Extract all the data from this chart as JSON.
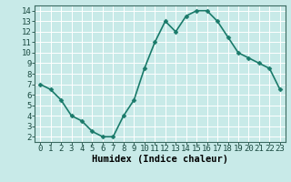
{
  "x": [
    0,
    1,
    2,
    3,
    4,
    5,
    6,
    7,
    8,
    9,
    10,
    11,
    12,
    13,
    14,
    15,
    16,
    17,
    18,
    19,
    20,
    21,
    22,
    23
  ],
  "y": [
    7.0,
    6.5,
    5.5,
    4.0,
    3.5,
    2.5,
    2.0,
    2.0,
    4.0,
    5.5,
    8.5,
    11.0,
    13.0,
    12.0,
    13.5,
    14.0,
    14.0,
    13.0,
    11.5,
    10.0,
    9.5,
    9.0,
    8.5,
    6.5
  ],
  "xlabel": "Humidex (Indice chaleur)",
  "line_color": "#1a7a6a",
  "marker_color": "#1a7a6a",
  "bg_color": "#c8eae8",
  "grid_color": "#ffffff",
  "xlim": [
    -0.5,
    23.5
  ],
  "ylim": [
    1.5,
    14.5
  ],
  "xticks": [
    0,
    1,
    2,
    3,
    4,
    5,
    6,
    7,
    8,
    9,
    10,
    11,
    12,
    13,
    14,
    15,
    16,
    17,
    18,
    19,
    20,
    21,
    22,
    23
  ],
  "yticks": [
    2,
    3,
    4,
    5,
    6,
    7,
    8,
    9,
    10,
    11,
    12,
    13,
    14
  ],
  "xlabel_fontsize": 7.5,
  "tick_fontsize": 6.5,
  "linewidth": 1.2,
  "markersize": 2.5
}
